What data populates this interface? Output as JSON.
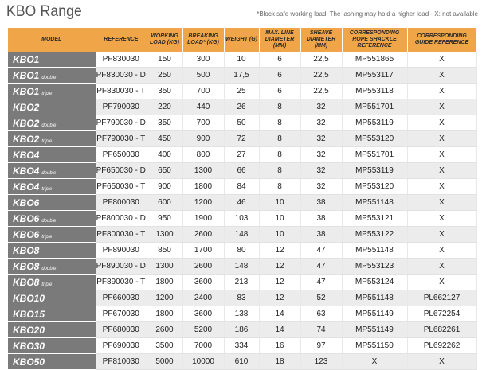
{
  "page": {
    "title": "KBO Range",
    "note": "*Block safe working load. The lashing may hold a higher load - X: not available"
  },
  "table": {
    "headers": [
      "MODEL",
      "REFERENCE",
      "WORKING LOAD (Kg)",
      "BREAKING LOAD* (Kg)",
      "WEIGHT (g)",
      "MAX. LINE DIAMETER (mm)",
      "SHEAVE DIAMETER (mm)",
      "CORRESPONDING ROPE SHACKLE REFERENCE",
      "CORRESPONDING GUIDE REFERENCE"
    ],
    "rows": [
      {
        "model": "KBO1",
        "suffix": "",
        "reference": "PF830030",
        "working_load": "150",
        "breaking_load": "300",
        "weight": "10",
        "max_line": "6",
        "sheave": "22,5",
        "shackle": "MP551865",
        "guide": "X"
      },
      {
        "model": "KBO1",
        "suffix": "double",
        "reference": "PF830030 - D",
        "working_load": "250",
        "breaking_load": "500",
        "weight": "17,5",
        "max_line": "6",
        "sheave": "22,5",
        "shackle": "MP553117",
        "guide": "X"
      },
      {
        "model": "KBO1",
        "suffix": "triple",
        "reference": "PF830030 - T",
        "working_load": "350",
        "breaking_load": "700",
        "weight": "25",
        "max_line": "6",
        "sheave": "22,5",
        "shackle": "MP553118",
        "guide": "X"
      },
      {
        "model": "KBO2",
        "suffix": "",
        "reference": "PF790030",
        "working_load": "220",
        "breaking_load": "440",
        "weight": "26",
        "max_line": "8",
        "sheave": "32",
        "shackle": "MP551701",
        "guide": "X"
      },
      {
        "model": "KBO2",
        "suffix": "double",
        "reference": "PF790030 - D",
        "working_load": "350",
        "breaking_load": "700",
        "weight": "50",
        "max_line": "8",
        "sheave": "32",
        "shackle": "MP553119",
        "guide": "X"
      },
      {
        "model": "KBO2",
        "suffix": "triple",
        "reference": "PF790030 - T",
        "working_load": "450",
        "breaking_load": "900",
        "weight": "72",
        "max_line": "8",
        "sheave": "32",
        "shackle": "MP553120",
        "guide": "X"
      },
      {
        "model": "KBO4",
        "suffix": "",
        "reference": "PF650030",
        "working_load": "400",
        "breaking_load": "800",
        "weight": "27",
        "max_line": "8",
        "sheave": "32",
        "shackle": "MP551701",
        "guide": "X"
      },
      {
        "model": "KBO4",
        "suffix": "double",
        "reference": "PF650030 - D",
        "working_load": "650",
        "breaking_load": "1300",
        "weight": "66",
        "max_line": "8",
        "sheave": "32",
        "shackle": "MP553119",
        "guide": "X"
      },
      {
        "model": "KBO4",
        "suffix": "triple",
        "reference": "PF650030 - T",
        "working_load": "900",
        "breaking_load": "1800",
        "weight": "84",
        "max_line": "8",
        "sheave": "32",
        "shackle": "MP553120",
        "guide": "X"
      },
      {
        "model": "KBO6",
        "suffix": "",
        "reference": "PF800030",
        "working_load": "600",
        "breaking_load": "1200",
        "weight": "46",
        "max_line": "10",
        "sheave": "38",
        "shackle": "MP551148",
        "guide": "X"
      },
      {
        "model": "KBO6",
        "suffix": "double",
        "reference": "PF800030 - D",
        "working_load": "950",
        "breaking_load": "1900",
        "weight": "103",
        "max_line": "10",
        "sheave": "38",
        "shackle": "MP553121",
        "guide": "X"
      },
      {
        "model": "KBO6",
        "suffix": "triple",
        "reference": "PF800030 - T",
        "working_load": "1300",
        "breaking_load": "2600",
        "weight": "148",
        "max_line": "10",
        "sheave": "38",
        "shackle": "MP553122",
        "guide": "X"
      },
      {
        "model": "KBO8",
        "suffix": "",
        "reference": "PF890030",
        "working_load": "850",
        "breaking_load": "1700",
        "weight": "80",
        "max_line": "12",
        "sheave": "47",
        "shackle": "MP551148",
        "guide": "X"
      },
      {
        "model": "KBO8",
        "suffix": "double",
        "reference": "PF890030 - D",
        "working_load": "1300",
        "breaking_load": "2600",
        "weight": "148",
        "max_line": "12",
        "sheave": "47",
        "shackle": "MP553123",
        "guide": "X"
      },
      {
        "model": "KBO8",
        "suffix": "triple",
        "reference": "PF890030 - T",
        "working_load": "1800",
        "breaking_load": "3600",
        "weight": "213",
        "max_line": "12",
        "sheave": "47",
        "shackle": "MP553124",
        "guide": "X"
      },
      {
        "model": "KBO10",
        "suffix": "",
        "reference": "PF660030",
        "working_load": "1200",
        "breaking_load": "2400",
        "weight": "83",
        "max_line": "12",
        "sheave": "52",
        "shackle": "MP551148",
        "guide": "PL662127"
      },
      {
        "model": "KBO15",
        "suffix": "",
        "reference": "PF670030",
        "working_load": "1800",
        "breaking_load": "3600",
        "weight": "138",
        "max_line": "14",
        "sheave": "63",
        "shackle": "MP551149",
        "guide": "PL672254"
      },
      {
        "model": "KBO20",
        "suffix": "",
        "reference": "PF680030",
        "working_load": "2600",
        "breaking_load": "5200",
        "weight": "186",
        "max_line": "14",
        "sheave": "74",
        "shackle": "MP551149",
        "guide": "PL682261"
      },
      {
        "model": "KBO30",
        "suffix": "",
        "reference": "PF690030",
        "working_load": "3500",
        "breaking_load": "7000",
        "weight": "334",
        "max_line": "16",
        "sheave": "97",
        "shackle": "MP551150",
        "guide": "PL692262"
      },
      {
        "model": "KBO50",
        "suffix": "",
        "reference": "PF810030",
        "working_load": "5000",
        "breaking_load": "10000",
        "weight": "610",
        "max_line": "18",
        "sheave": "123",
        "shackle": "X",
        "guide": "X"
      }
    ]
  }
}
